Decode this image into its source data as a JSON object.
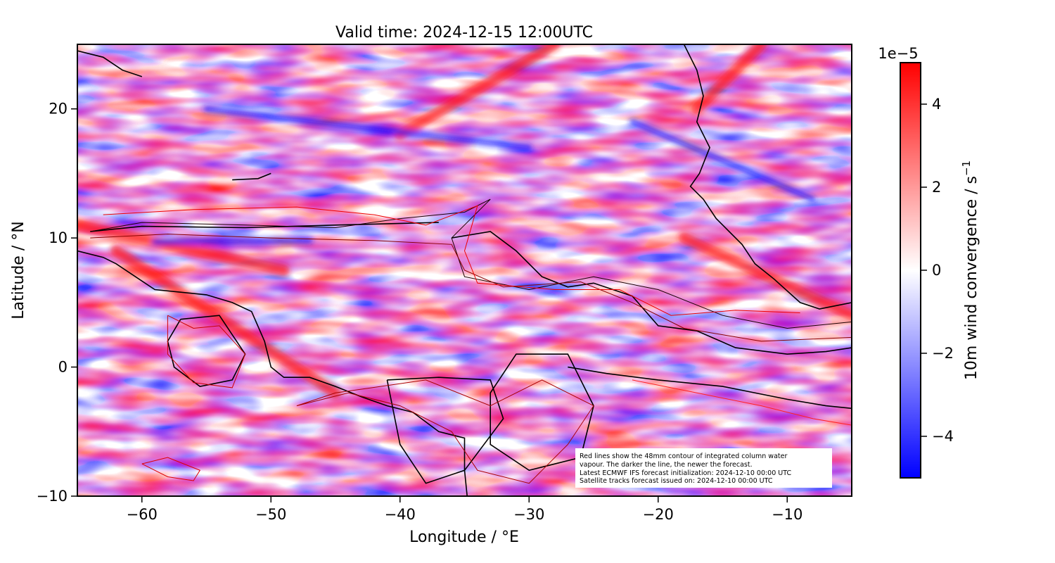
{
  "chart_data": {
    "type": "heatmap",
    "title": "Valid time: 2024-12-15 12:00UTC",
    "xlabel": "Longitude / °E",
    "ylabel": "Latitude / °N",
    "xlim": [
      -65,
      -5
    ],
    "ylim": [
      -10,
      25
    ],
    "xticks": [
      -60,
      -50,
      -40,
      -30,
      -20,
      -10
    ],
    "yticks": [
      -10,
      0,
      10,
      20
    ],
    "xtick_labels": [
      "−60",
      "−50",
      "−40",
      "−30",
      "−20",
      "−10"
    ],
    "ytick_labels": [
      "−10",
      "0",
      "10",
      "20"
    ],
    "grid": false,
    "colorbar": {
      "label": "10m wind convergence / s",
      "label_exponent": "−1",
      "scale_label": "1e−5",
      "range": [
        -5,
        5
      ],
      "ticks": [
        -4,
        -2,
        0,
        2,
        4
      ],
      "tick_labels": [
        "−4",
        "−2",
        "0",
        "2",
        "4"
      ],
      "colors": [
        "#0000ff",
        "#ffffff",
        "#ff0000"
      ]
    },
    "annotation": {
      "lines": [
        "Red lines show the 48mm contour of integrated column water",
        "vapour. The darker the line, the newer the forecast.",
        "Latest ECMWF IFS forecast initialization: 2024-12-10 00:00 UTC",
        "Satellite tracks forecast issued on: 2024-12-10 00:00 UTC"
      ],
      "placement": "bottom-right"
    },
    "field_features": {
      "convergence_bands": [
        {
          "name": "ITCZ west",
          "lon": [
            -65,
            -49
          ],
          "lat": [
            11,
            7.5
          ],
          "sign": "+"
        },
        {
          "name": "coastal band",
          "lon": [
            -62,
            -45
          ],
          "lat": [
            9,
            -2
          ],
          "sign": "+"
        },
        {
          "name": "NE diagonal band",
          "lon": [
            -40,
            -28
          ],
          "lat": [
            18,
            25
          ],
          "sign": "+"
        },
        {
          "name": "African coast band",
          "lon": [
            -18,
            -5
          ],
          "lat": [
            10,
            4
          ],
          "sign": "+"
        },
        {
          "name": "NE ridge",
          "lon": [
            -17,
            -12
          ],
          "lat": [
            20,
            25
          ],
          "sign": "+"
        }
      ],
      "divergence_bands": [
        {
          "name": "ITCZ blue",
          "lon": [
            -59,
            -47
          ],
          "lat": [
            9.7,
            9.8
          ],
          "sign": "-"
        },
        {
          "name": "northern streaks",
          "lon": [
            -55,
            -30
          ],
          "lat": [
            20,
            17
          ],
          "sign": "-"
        },
        {
          "name": "east streaks",
          "lon": [
            -22,
            -8
          ],
          "lat": [
            19,
            13
          ],
          "sign": "-"
        }
      ]
    },
    "contours": {
      "moisture_48mm": {
        "color_new": "#1a0000",
        "color_old": "#ee0000"
      },
      "coastline_color": "#000000"
    }
  }
}
